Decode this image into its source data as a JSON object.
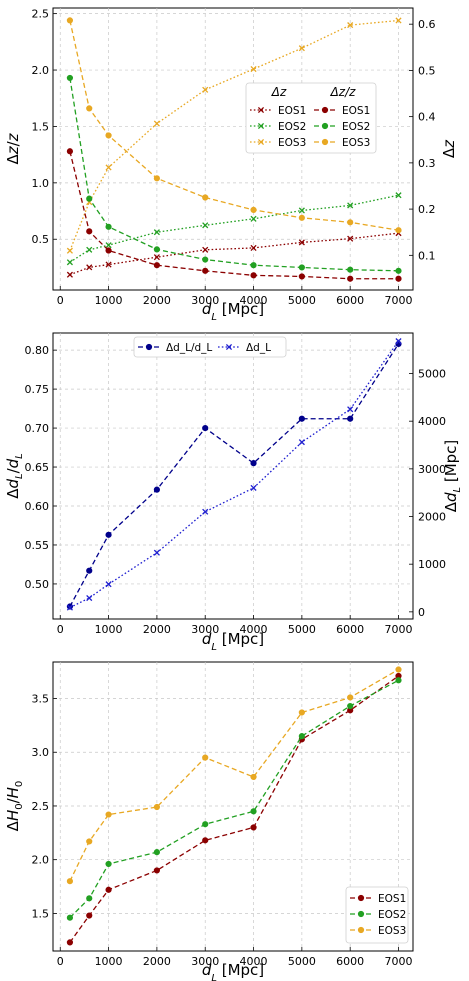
{
  "chart_data": [
    {
      "type": "line",
      "x": [
        200,
        600,
        1000,
        2000,
        3000,
        4000,
        5000,
        6000,
        7000
      ],
      "xlabel": "d_L [Mpc]",
      "ylabel": "Δz/z",
      "ylabel_right": "Δz",
      "xlim": [
        -150,
        7300
      ],
      "ylim": [
        0.05,
        2.55
      ],
      "ylim_right": [
        0.025,
        0.635
      ],
      "xticks": [
        0,
        1000,
        2000,
        3000,
        4000,
        5000,
        6000,
        7000
      ],
      "yticks": [
        0.5,
        1.0,
        1.5,
        2.0,
        2.5
      ],
      "yticks_right": [
        0.1,
        0.2,
        0.3,
        0.4,
        0.5,
        0.6
      ],
      "grid": true,
      "legend_groups": [
        {
          "title": "Δz",
          "placement": "center",
          "entries": [
            "EOS1",
            "EOS2",
            "EOS3"
          ]
        },
        {
          "title": "Δz/z",
          "placement": "center-right",
          "entries": [
            "EOS1",
            "EOS2",
            "EOS3"
          ]
        }
      ],
      "series": [
        {
          "name": "EOS1",
          "group": "Δz",
          "axis": "right",
          "style": "dotted",
          "marker": "x",
          "color": "#8b0000",
          "values": [
            0.058,
            0.074,
            0.08,
            0.096,
            0.112,
            0.116,
            0.128,
            0.136,
            0.148
          ]
        },
        {
          "name": "EOS2",
          "group": "Δz",
          "axis": "right",
          "style": "dotted",
          "marker": "x",
          "color": "#22a022",
          "values": [
            0.085,
            0.112,
            0.122,
            0.15,
            0.165,
            0.179,
            0.197,
            0.208,
            0.23
          ]
        },
        {
          "name": "EOS3",
          "group": "Δz",
          "axis": "right",
          "style": "dotted",
          "marker": "x",
          "color": "#e8a823",
          "values": [
            0.11,
            0.215,
            0.29,
            0.385,
            0.458,
            0.503,
            0.548,
            0.598,
            0.608
          ]
        },
        {
          "name": "EOS1",
          "group": "Δz/z",
          "axis": "left",
          "style": "dashed",
          "marker": "o",
          "color": "#8b0000",
          "values": [
            1.28,
            0.57,
            0.4,
            0.27,
            0.22,
            0.18,
            0.17,
            0.15,
            0.15
          ]
        },
        {
          "name": "EOS2",
          "group": "Δz/z",
          "axis": "left",
          "style": "dashed",
          "marker": "o",
          "color": "#22a022",
          "values": [
            1.93,
            0.86,
            0.61,
            0.41,
            0.32,
            0.27,
            0.25,
            0.23,
            0.22
          ]
        },
        {
          "name": "EOS3",
          "group": "Δz/z",
          "axis": "left",
          "style": "dashed",
          "marker": "o",
          "color": "#e8a823",
          "values": [
            2.44,
            1.66,
            1.42,
            1.04,
            0.87,
            0.76,
            0.69,
            0.65,
            0.58
          ]
        }
      ]
    },
    {
      "type": "line",
      "x": [
        200,
        600,
        1000,
        2000,
        3000,
        4000,
        5000,
        6000,
        7000
      ],
      "xlabel": "d_L [Mpc]",
      "ylabel": "Δd_L/d_L",
      "ylabel_right": "Δd_L [Mpc]",
      "xlim": [
        -150,
        7300
      ],
      "ylim": [
        0.455,
        0.822
      ],
      "ylim_right": [
        -150,
        5850
      ],
      "xticks": [
        0,
        1000,
        2000,
        3000,
        4000,
        5000,
        6000,
        7000
      ],
      "yticks": [
        0.5,
        0.55,
        0.6,
        0.65,
        0.7,
        0.75,
        0.8
      ],
      "yticks_right": [
        0,
        1000,
        2000,
        3000,
        4000,
        5000
      ],
      "grid": true,
      "legend_placement": "top-left",
      "series": [
        {
          "name": "Δd_L/d_L",
          "axis": "left",
          "style": "dashed",
          "marker": "o",
          "color": "#00008b",
          "values": [
            0.471,
            0.517,
            0.563,
            0.621,
            0.7,
            0.655,
            0.712,
            0.712,
            0.808
          ]
        },
        {
          "name": "Δd_L",
          "axis": "right",
          "style": "dotted",
          "marker": "x",
          "color": "#1f1fd0",
          "values": [
            90,
            290,
            580,
            1240,
            2100,
            2600,
            3560,
            4250,
            5680
          ]
        }
      ]
    },
    {
      "type": "line",
      "x": [
        200,
        600,
        1000,
        2000,
        3000,
        4000,
        5000,
        6000,
        7000
      ],
      "xlabel": "d_L [Mpc]",
      "ylabel": "ΔH_0/H_0",
      "xlim": [
        -150,
        7300
      ],
      "ylim": [
        1.15,
        3.84
      ],
      "xticks": [
        0,
        1000,
        2000,
        3000,
        4000,
        5000,
        6000,
        7000
      ],
      "yticks": [
        1.5,
        2.0,
        2.5,
        3.0,
        3.5
      ],
      "grid": true,
      "legend_placement": "bottom-right",
      "series": [
        {
          "name": "EOS1",
          "style": "dashed",
          "marker": "o",
          "color": "#8b0000",
          "values": [
            1.23,
            1.48,
            1.72,
            1.9,
            2.18,
            2.3,
            3.12,
            3.39,
            3.71
          ]
        },
        {
          "name": "EOS2",
          "style": "dashed",
          "marker": "o",
          "color": "#22a022",
          "values": [
            1.46,
            1.64,
            1.96,
            2.07,
            2.33,
            2.45,
            3.15,
            3.43,
            3.67
          ]
        },
        {
          "name": "EOS3",
          "style": "dashed",
          "marker": "o",
          "color": "#e8a823",
          "values": [
            1.8,
            2.17,
            2.42,
            2.49,
            2.95,
            2.77,
            3.37,
            3.51,
            3.77
          ]
        }
      ]
    }
  ]
}
